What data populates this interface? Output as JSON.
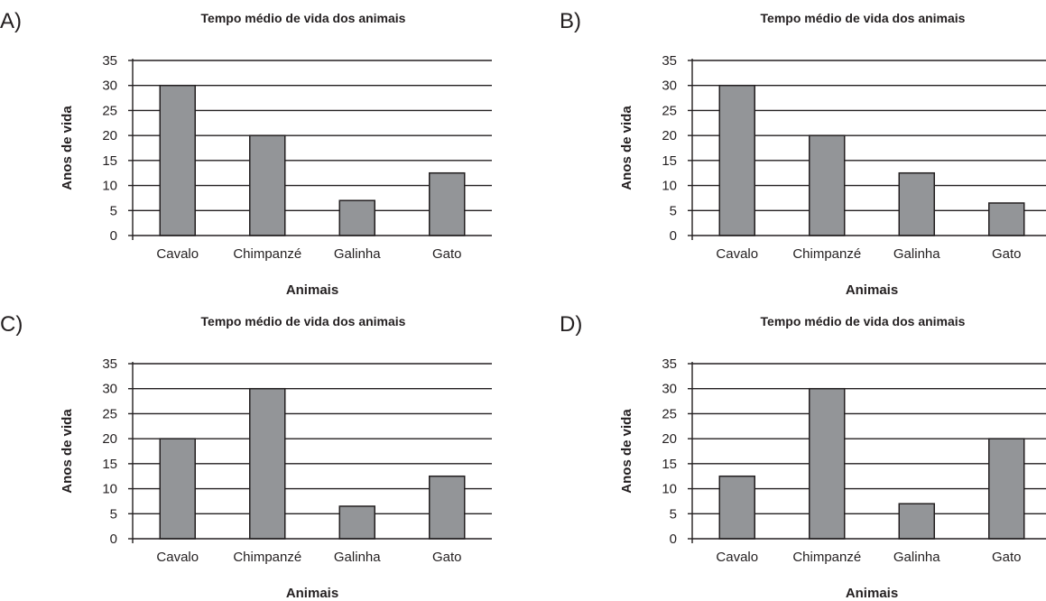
{
  "options": [
    "A)",
    "B)",
    "C)",
    "D)"
  ],
  "colors": {
    "bar_fill": "#939598",
    "ink": "#231f20"
  },
  "chart_data": [
    {
      "type": "bar",
      "title": "Tempo médio de vida dos animais",
      "xlabel": "Animais",
      "ylabel": "Anos de vida",
      "categories": [
        "Cavalo",
        "Chimpanzé",
        "Galinha",
        "Gato"
      ],
      "values": [
        30,
        20,
        7,
        12.5
      ],
      "ylim": [
        0,
        35
      ],
      "yticks": [
        "0",
        "5",
        "10",
        "15",
        "20",
        "25",
        "30",
        "35"
      ],
      "grid": true,
      "legend": "none"
    },
    {
      "type": "bar",
      "title": "Tempo médio de vida dos animais",
      "xlabel": "Animais",
      "ylabel": "Anos de vida",
      "categories": [
        "Cavalo",
        "Chimpanzé",
        "Galinha",
        "Gato"
      ],
      "values": [
        30,
        20,
        12.5,
        6.5
      ],
      "ylim": [
        0,
        35
      ],
      "yticks": [
        "0",
        "5",
        "10",
        "15",
        "20",
        "25",
        "30",
        "35"
      ],
      "grid": true,
      "legend": "none"
    },
    {
      "type": "bar",
      "title": "Tempo médio de vida dos animais",
      "xlabel": "Animais",
      "ylabel": "Anos de vida",
      "categories": [
        "Cavalo",
        "Chimpanzé",
        "Galinha",
        "Gato"
      ],
      "values": [
        20,
        30,
        6.5,
        12.5
      ],
      "ylim": [
        0,
        35
      ],
      "yticks": [
        "0",
        "5",
        "10",
        "15",
        "20",
        "25",
        "30",
        "35"
      ],
      "grid": true,
      "legend": "none"
    },
    {
      "type": "bar",
      "title": "Tempo médio de vida dos animais",
      "xlabel": "Animais",
      "ylabel": "Anos de vida",
      "categories": [
        "Cavalo",
        "Chimpanzé",
        "Galinha",
        "Gato"
      ],
      "values": [
        12.5,
        30,
        7,
        20
      ],
      "ylim": [
        0,
        35
      ],
      "yticks": [
        "0",
        "5",
        "10",
        "15",
        "20",
        "25",
        "30",
        "35"
      ],
      "grid": true,
      "legend": "none"
    }
  ]
}
